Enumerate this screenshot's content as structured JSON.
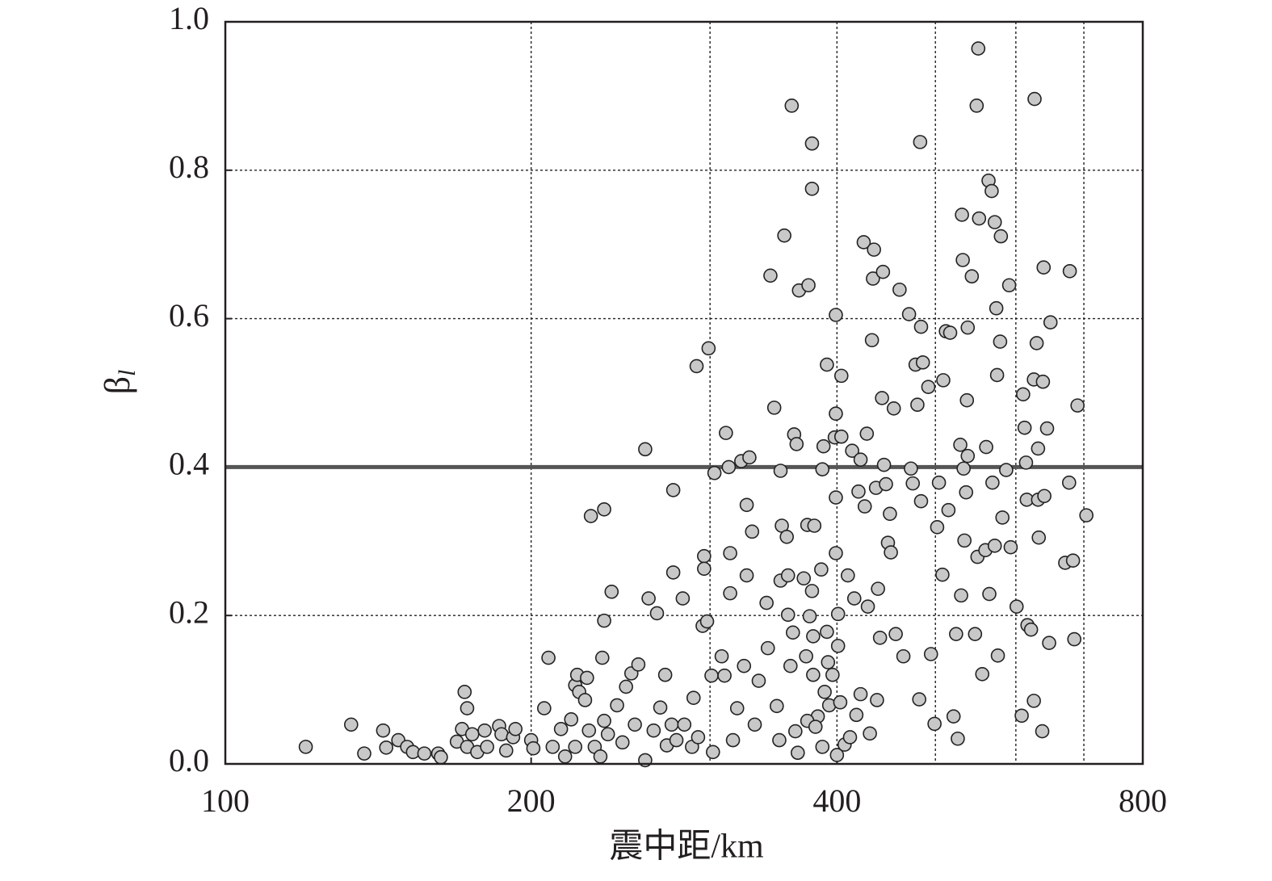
{
  "chart_data": {
    "type": "scatter",
    "xlabel": "震中距/km",
    "ylabel": "β",
    "ylabel_sub": "l",
    "xscale": "log",
    "xlim": [
      100,
      800
    ],
    "xticks": [
      100,
      200,
      400,
      800
    ],
    "x_minor_gridlines": [
      300,
      500,
      600,
      700
    ],
    "ylim": [
      0,
      1
    ],
    "yticks": [
      {
        "value": 0,
        "label": "0.0"
      },
      {
        "value": 0.2,
        "label": "0.2"
      },
      {
        "value": 0.4,
        "label": "0.4"
      },
      {
        "value": 0.6,
        "label": "0.6"
      },
      {
        "value": 0.8,
        "label": "0.8"
      },
      {
        "value": 1,
        "label": "1.0"
      }
    ],
    "grid": true,
    "hline": 0.4,
    "hline_color": "#555555",
    "color": "#c8c8c8",
    "edge_color": "#222222",
    "x": [
      120,
      133,
      137,
      143,
      144,
      148,
      151,
      153,
      157,
      162,
      163,
      169,
      171,
      172,
      173,
      173,
      175,
      177,
      180,
      181,
      186,
      187,
      189,
      192,
      193,
      200,
      201,
      206,
      208,
      210,
      214,
      216,
      219,
      221,
      221,
      222,
      223,
      226,
      227,
      228,
      229,
      231,
      234,
      235,
      236,
      236,
      236,
      238,
      240,
      243,
      246,
      248,
      251,
      253,
      255,
      259,
      259,
      261,
      264,
      266,
      268,
      271,
      272,
      275,
      276,
      276,
      278,
      282,
      283,
      288,
      289,
      291,
      292,
      295,
      296,
      296,
      298,
      299,
      301,
      302,
      303,
      308,
      310,
      311,
      313,
      314,
      314,
      316,
      319,
      322,
      324,
      326,
      326,
      328,
      330,
      332,
      335,
      341,
      342,
      344,
      347,
      349,
      351,
      352,
      352,
      353,
      355,
      357,
      358,
      358,
      360,
      361,
      362,
      363,
      364,
      365,
      366,
      367,
      371,
      373,
      374,
      375,
      376,
      378,
      378,
      378,
      379,
      379,
      380,
      383,
      386,
      387,
      388,
      389,
      391,
      391,
      393,
      396,
      398,
      399,
      399,
      399,
      399,
      400,
      401,
      401,
      404,
      404,
      407,
      410,
      412,
      414,
      416,
      420,
      422,
      425,
      426,
      428,
      429,
      431,
      433,
      434,
      435,
      437,
      438,
      439,
      441,
      443,
      444,
      445,
      447,
      449,
      451,
      452,
      455,
      457,
      461,
      465,
      471,
      473,
      475,
      478,
      480,
      482,
      483,
      484,
      484,
      486,
      492,
      495,
      499,
      502,
      504,
      508,
      509,
      512,
      515,
      517,
      521,
      524,
      526,
      529,
      530,
      531,
      532,
      533,
      534,
      536,
      537,
      538,
      538,
      543,
      547,
      549,
      550,
      551,
      552,
      556,
      560,
      561,
      564,
      565,
      568,
      569,
      572,
      572,
      574,
      575,
      576,
      579,
      580,
      582,
      587,
      591,
      593,
      601,
      608,
      610,
      612,
      614,
      615,
      616,
      621,
      625,
      626,
      625,
      629,
      631,
      631,
      632,
      637,
      638,
      639,
      640,
      644,
      647,
      649,
      671,
      677,
      678,
      683,
      685,
      690,
      704,
      403,
      418,
      422,
      387,
      374,
      381,
      392
    ],
    "y": [
      0.023,
      0.053,
      0.014,
      0.045,
      0.022,
      0.032,
      0.023,
      0.016,
      0.014,
      0.014,
      0.009,
      0.03,
      0.047,
      0.097,
      0.075,
      0.023,
      0.04,
      0.016,
      0.045,
      0.023,
      0.051,
      0.04,
      0.018,
      0.036,
      0.047,
      0.032,
      0.021,
      0.075,
      0.143,
      0.023,
      0.047,
      0.01,
      0.06,
      0.023,
      0.106,
      0.12,
      0.097,
      0.086,
      0.116,
      0.045,
      0.334,
      0.023,
      0.01,
      0.143,
      0.343,
      0.058,
      0.193,
      0.04,
      0.232,
      0.079,
      0.029,
      0.104,
      0.122,
      0.053,
      0.134,
      0.424,
      0.005,
      0.223,
      0.045,
      0.203,
      0.076,
      0.12,
      0.025,
      0.053,
      0.369,
      0.258,
      0.032,
      0.223,
      0.053,
      0.023,
      0.089,
      0.536,
      0.036,
      0.186,
      0.28,
      0.263,
      0.192,
      0.56,
      0.119,
      0.016,
      0.392,
      0.145,
      0.119,
      0.446,
      0.4,
      0.284,
      0.23,
      0.032,
      0.075,
      0.408,
      0.132,
      0.254,
      0.349,
      0.413,
      0.313,
      0.053,
      0.112,
      0.217,
      0.156,
      0.658,
      0.48,
      0.078,
      0.032,
      0.395,
      0.247,
      0.321,
      0.712,
      0.306,
      0.201,
      0.254,
      0.132,
      0.887,
      0.177,
      0.444,
      0.044,
      0.431,
      0.015,
      0.638,
      0.25,
      0.145,
      0.322,
      0.645,
      0.199,
      0.775,
      0.836,
      0.233,
      0.12,
      0.172,
      0.321,
      0.064,
      0.262,
      0.397,
      0.428,
      0.097,
      0.178,
      0.538,
      0.079,
      0.12,
      0.44,
      0.472,
      0.605,
      0.359,
      0.284,
      0.012,
      0.159,
      0.202,
      0.441,
      0.523,
      0.026,
      0.254,
      0.036,
      0.422,
      0.223,
      0.367,
      0.41,
      0.703,
      0.347,
      0.445,
      0.212,
      0.041,
      0.571,
      0.654,
      0.693,
      0.372,
      0.086,
      0.236,
      0.17,
      0.493,
      0.663,
      0.403,
      0.377,
      0.298,
      0.337,
      0.285,
      0.479,
      0.175,
      0.639,
      0.145,
      0.606,
      0.398,
      0.378,
      0.538,
      0.484,
      0.087,
      0.838,
      0.589,
      0.354,
      0.541,
      0.508,
      0.148,
      0.054,
      0.319,
      0.379,
      0.255,
      0.517,
      0.583,
      0.342,
      0.581,
      0.064,
      0.175,
      0.034,
      0.43,
      0.227,
      0.74,
      0.679,
      0.398,
      0.301,
      0.366,
      0.49,
      0.588,
      0.415,
      0.657,
      0.175,
      0.887,
      0.279,
      0.964,
      0.735,
      0.121,
      0.288,
      0.427,
      0.786,
      0.229,
      0.772,
      0.379,
      0.73,
      0.294,
      0.614,
      0.524,
      0.146,
      0.569,
      0.711,
      0.332,
      0.396,
      0.645,
      0.292,
      0.212,
      0.065,
      0.498,
      0.453,
      0.406,
      0.356,
      0.187,
      0.181,
      0.085,
      0.896,
      0.518,
      0.567,
      0.425,
      0.356,
      0.305,
      0.044,
      0.515,
      0.669,
      0.361,
      0.452,
      0.163,
      0.595,
      0.271,
      0.379,
      0.664,
      0.274,
      0.168,
      0.483,
      0.335,
      0.083,
      0.066,
      0.094,
      0.023,
      0.058,
      0.05,
      0.137
    ]
  }
}
